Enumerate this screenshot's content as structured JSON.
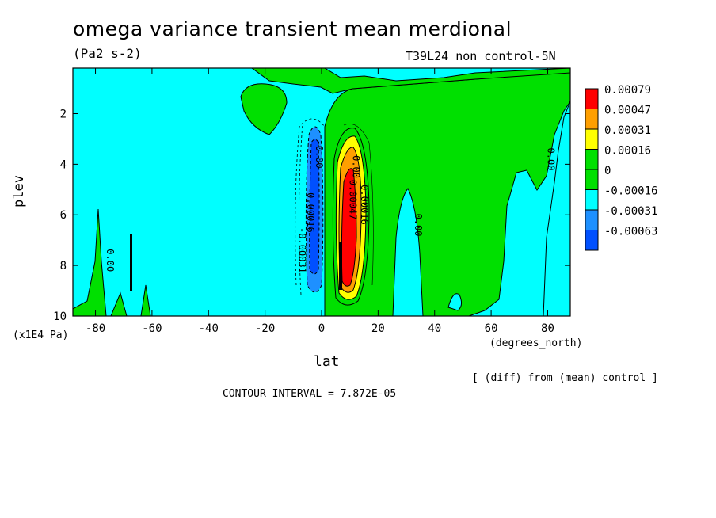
{
  "title": "omega variance transient mean merdional",
  "units": "(Pa2 s-2)",
  "run_label": "T39L24_non_control-5N",
  "diff_label": "[ (diff) from (mean) control ]",
  "contour_interval_text": "CONTOUR INTERVAL = 7.872E-05",
  "chart_data": {
    "type": "heatmap",
    "title": "omega variance transient mean merdional",
    "xlabel": "lat",
    "xunit": "(degrees_north)",
    "ylabel": "plev",
    "yunit": "(x1E4 Pa)",
    "xlim": [
      -88,
      88
    ],
    "ylim": [
      10,
      0.2
    ],
    "x_ticks": [
      -80,
      -60,
      -40,
      -20,
      0,
      20,
      40,
      60,
      80
    ],
    "y_ticks": [
      2,
      4,
      6,
      8,
      10
    ],
    "legend_levels": [
      "0.00079",
      "0.00047",
      "0.00031",
      "0.00016",
      "0",
      "-0.00016",
      "-0.00031",
      "-0.00063"
    ],
    "legend_colors": [
      "#ff0000",
      "#ff9f00",
      "#ffff00",
      "#00e000",
      "#00e000",
      "#00ffff",
      "#1e90ff",
      "#0050ff"
    ],
    "contour_labels": [
      {
        "text": "0.00",
        "x": -76,
        "y": 7.8
      },
      {
        "text": "-0.00031",
        "x": -8,
        "y": 7.4
      },
      {
        "text": "-0.00016",
        "x": -5,
        "y": 5.8
      },
      {
        "text": "-0.00",
        "x": -2,
        "y": 3.6
      },
      {
        "text": "0.00047",
        "x": 10,
        "y": 5.4
      },
      {
        "text": "0.00",
        "x": 11,
        "y": 4.1
      },
      {
        "text": "0.00016",
        "x": 14,
        "y": 5.6
      },
      {
        "text": "0.00",
        "x": 33,
        "y": 6.4
      },
      {
        "text": "0.00",
        "x": 80,
        "y": 3.8
      }
    ]
  }
}
